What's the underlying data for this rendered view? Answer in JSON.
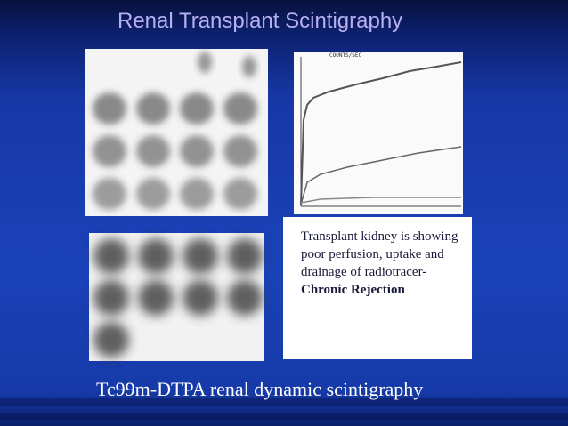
{
  "slide": {
    "title": "Renal Transplant Scintigraphy",
    "graph": {
      "axis_label": "COUNTS/SEC"
    },
    "note": {
      "text": "Transplant kidney is showing poor perfusion, uptake and drainage of radiotracer-",
      "emphasis": "Chronic Rejection"
    },
    "caption": "Tc99m-DTPA renal dynamic scintigraphy"
  }
}
